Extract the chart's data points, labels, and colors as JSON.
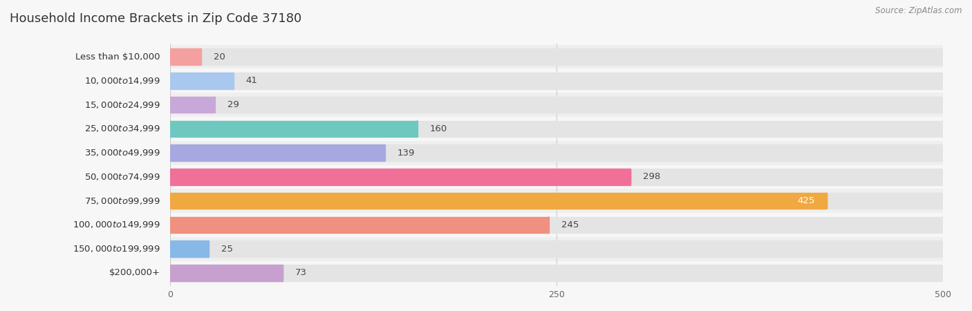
{
  "title": "Household Income Brackets in Zip Code 37180",
  "source": "Source: ZipAtlas.com",
  "categories": [
    "Less than $10,000",
    "$10,000 to $14,999",
    "$15,000 to $24,999",
    "$25,000 to $34,999",
    "$35,000 to $49,999",
    "$50,000 to $74,999",
    "$75,000 to $99,999",
    "$100,000 to $149,999",
    "$150,000 to $199,999",
    "$200,000+"
  ],
  "values": [
    20,
    41,
    29,
    160,
    139,
    298,
    425,
    245,
    25,
    73
  ],
  "bar_colors": [
    "#F4A0A0",
    "#A8C8F0",
    "#C8A8D8",
    "#6EC8C0",
    "#A8A8E0",
    "#F07098",
    "#F0A840",
    "#F09080",
    "#88B8E8",
    "#C8A0D0"
  ],
  "bg_color": "#f7f7f7",
  "bar_bg_color": "#e4e4e4",
  "xlim": [
    0,
    500
  ],
  "xticks": [
    0,
    250,
    500
  ],
  "title_fontsize": 13,
  "label_fontsize": 9.5,
  "value_fontsize": 9.5
}
